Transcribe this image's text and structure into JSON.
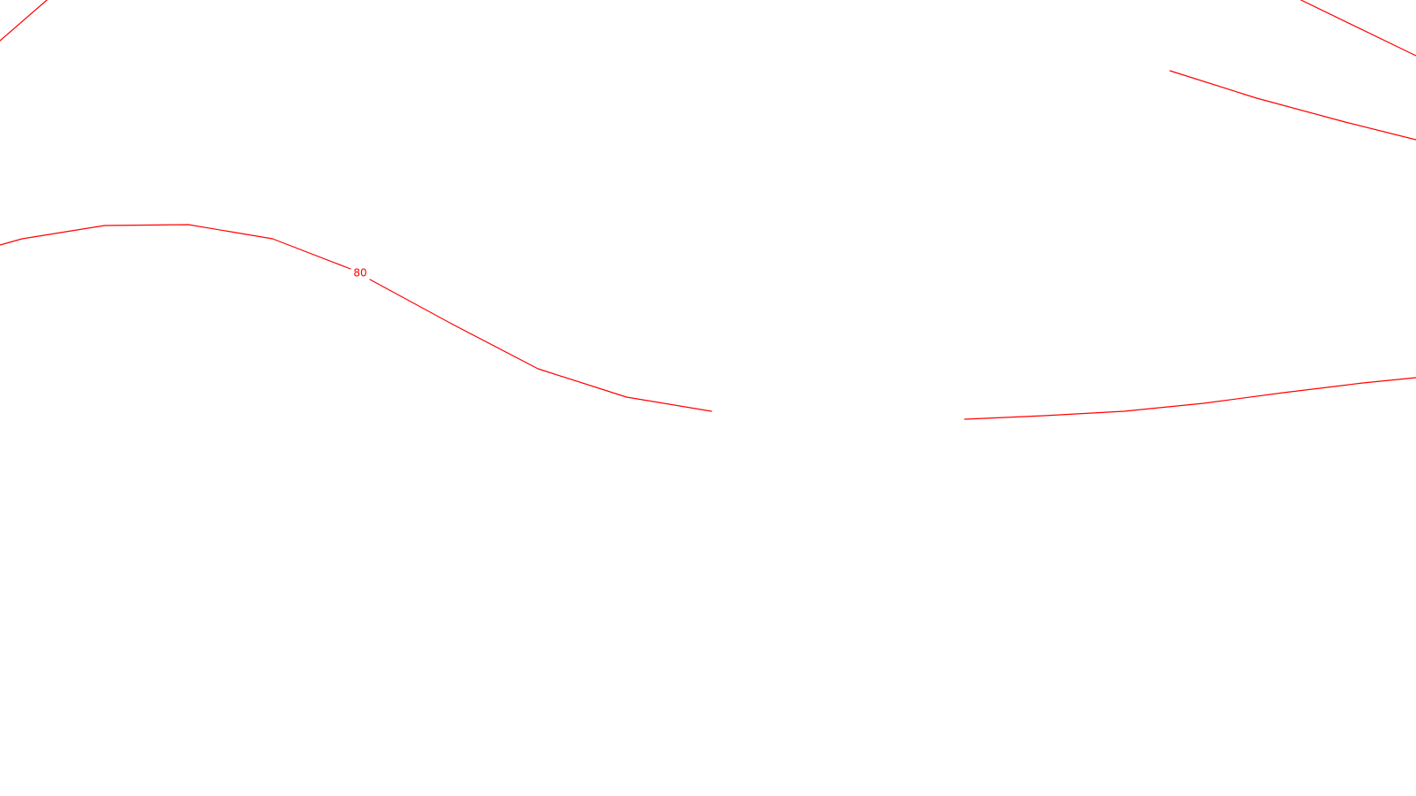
{
  "map": {
    "background": "#ffffff",
    "contour_color": "#ff0000",
    "contour_labels": [
      "80"
    ]
  }
}
